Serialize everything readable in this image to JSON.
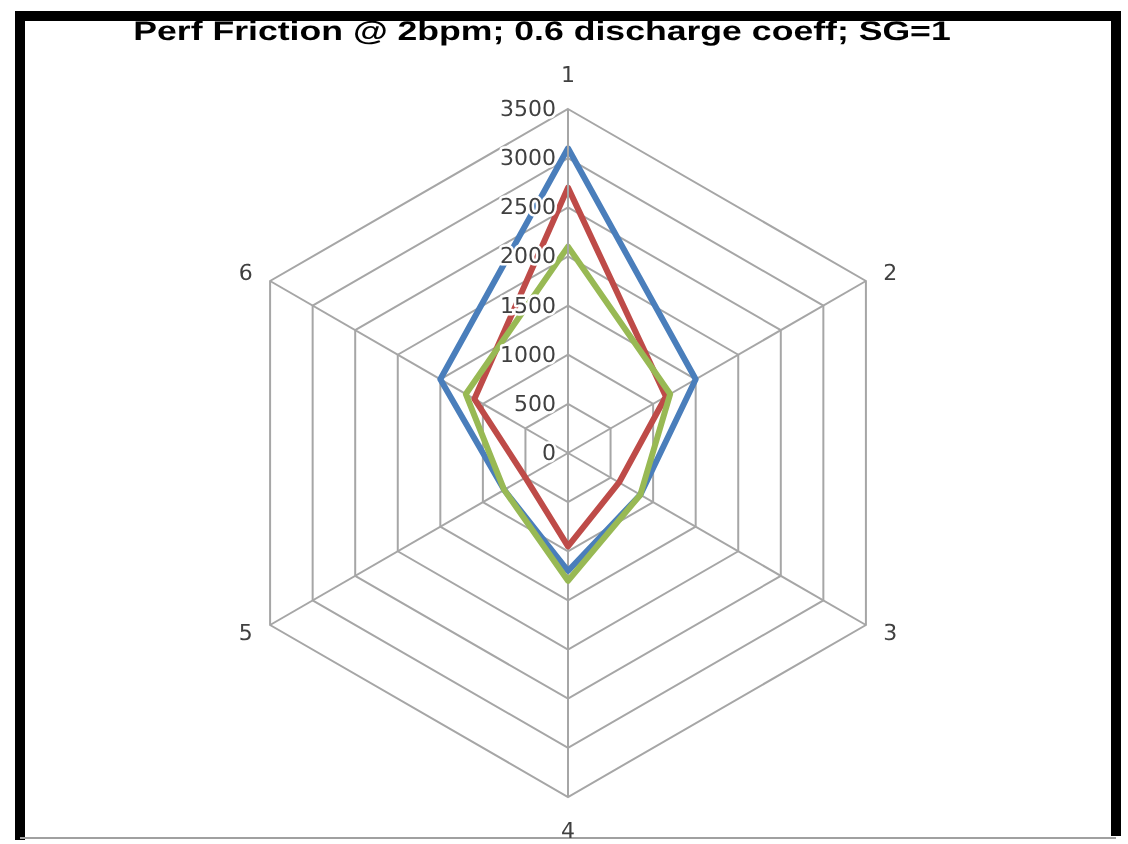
{
  "chart_data": {
    "type": "radar",
    "title": "Perf Friction @ 2bpm; 0.6 discharge coeff; SG=1",
    "categories": [
      "1",
      "2",
      "3",
      "4",
      "5",
      "6"
    ],
    "series": [
      {
        "color": "#4a7ebb",
        "values": [
          3100,
          1500,
          850,
          1200,
          750,
          1500
        ]
      },
      {
        "color": "#be4b48",
        "values": [
          2700,
          1150,
          600,
          950,
          500,
          1100
        ]
      },
      {
        "color": "#98b954",
        "values": [
          2100,
          1200,
          850,
          1300,
          750,
          1200
        ]
      }
    ],
    "ylim": [
      0,
      3500
    ],
    "yticks": [
      0,
      500,
      1000,
      1500,
      2000,
      2500,
      3000,
      3500
    ],
    "grid": true
  }
}
